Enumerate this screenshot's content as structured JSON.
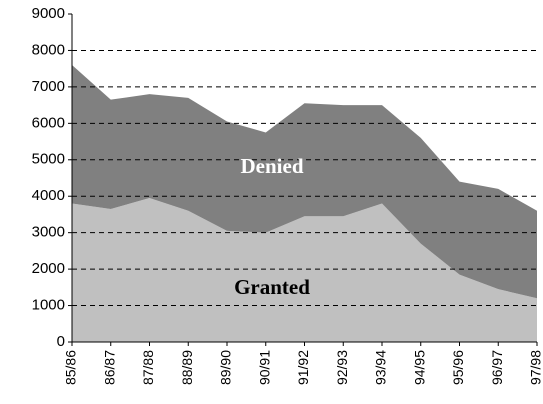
{
  "chart_data": {
    "type": "stacked_area",
    "categories": [
      "85/86",
      "86/87",
      "87/88",
      "88/89",
      "89/90",
      "90/91",
      "91/92",
      "92/93",
      "93/94",
      "94/95",
      "95/96",
      "96/97",
      "97/98"
    ],
    "series": [
      {
        "name": "Granted",
        "color": "#c0c0c0",
        "values": [
          3800,
          3650,
          3950,
          3600,
          3050,
          3000,
          3450,
          3450,
          3800,
          2700,
          1850,
          1450,
          1200
        ]
      },
      {
        "name": "Denied",
        "color": "#808080",
        "values": [
          3800,
          3000,
          2850,
          3100,
          3000,
          2750,
          3100,
          3050,
          2700,
          2900,
          2550,
          2750,
          2400
        ]
      }
    ],
    "ylim": [
      0,
      9000
    ],
    "yticks": [
      0,
      1000,
      2000,
      3000,
      4000,
      5000,
      6000,
      7000,
      8000,
      9000
    ],
    "grid": true
  }
}
